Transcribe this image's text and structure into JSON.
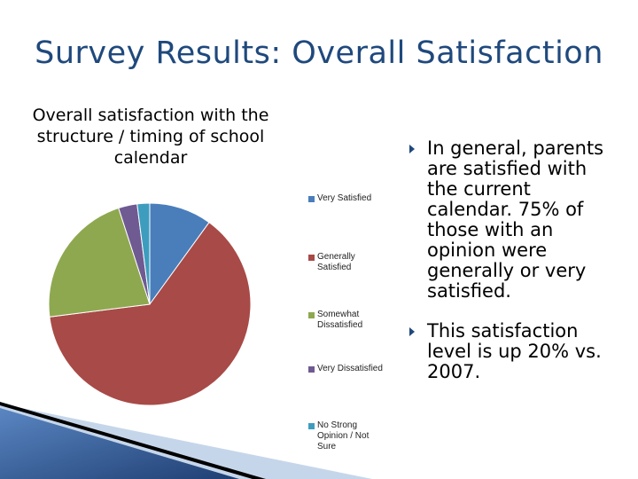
{
  "slide": {
    "title": "Survey Results:  Overall Satisfaction"
  },
  "chart_data": {
    "type": "pie",
    "title": "Overall satisfaction with the structure / timing of school calendar",
    "categories": [
      "Very Satisfied",
      "Generally Satisfied",
      "Somewhat Dissatisfied",
      "Very Dissatisfied",
      "No Strong Opinion / Not Sure"
    ],
    "values": [
      10,
      63,
      22,
      3,
      2
    ],
    "colors": [
      "#4A7EBB",
      "#A84A47",
      "#8EA850",
      "#6F5A92",
      "#3E9DBE"
    ],
    "legend_position": "right"
  },
  "bullets": [
    "In general, parents are satisfied with the current calendar. 75% of those with an opinion were generally or very satisfied.",
    "This satisfaction level is up 20% vs. 2007."
  ],
  "colors": {
    "title": "#1F497D",
    "bullet": "#1F497D",
    "decor_dark": "#1F3F73",
    "decor_light": "#A9C1DF"
  }
}
